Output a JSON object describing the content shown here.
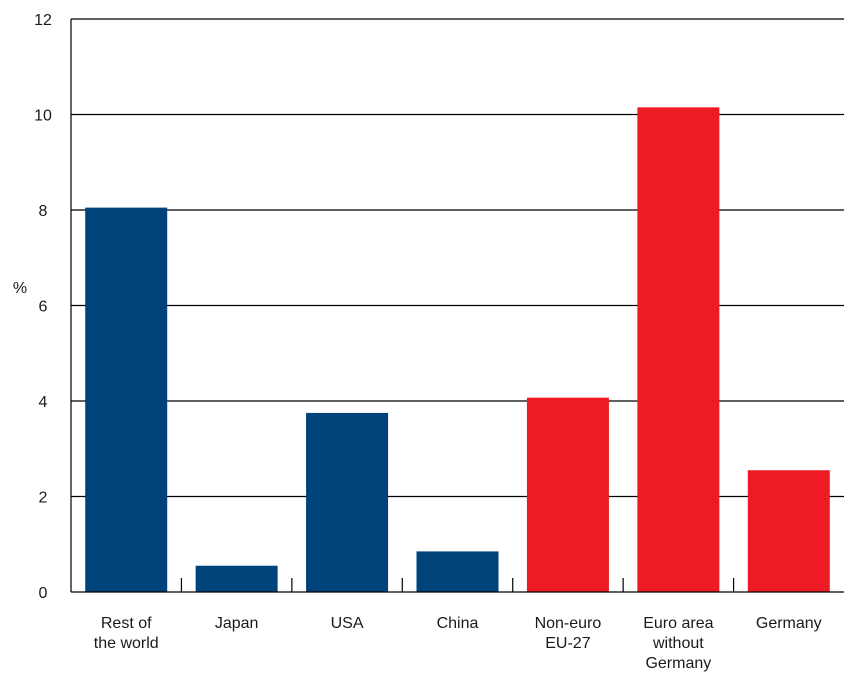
{
  "chart_data": {
    "type": "bar",
    "title": "",
    "xlabel": "",
    "ylabel": "%",
    "ylim": [
      0,
      12
    ],
    "yticks": [
      0,
      2,
      4,
      6,
      8,
      10,
      12
    ],
    "grid": true,
    "categories": [
      [
        "Rest of",
        "the world"
      ],
      [
        "Japan"
      ],
      [
        "USA"
      ],
      [
        "China"
      ],
      [
        "Non-euro",
        "EU-27"
      ],
      [
        "Euro area",
        "without",
        "Germany"
      ],
      [
        "Germany"
      ]
    ],
    "values": [
      8.05,
      0.55,
      3.75,
      0.85,
      4.07,
      10.15,
      2.55
    ],
    "bar_colors": [
      "#00427a",
      "#00427a",
      "#00427a",
      "#00427a",
      "#ed1c24",
      "#ed1c24",
      "#ed1c24"
    ]
  }
}
